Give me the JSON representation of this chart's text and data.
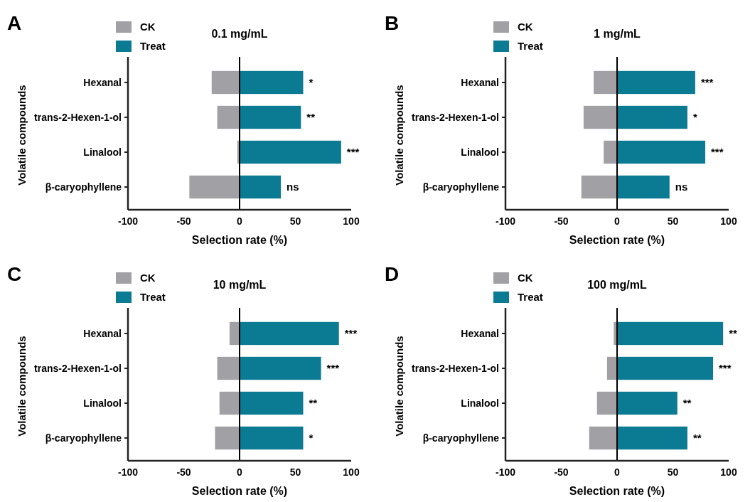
{
  "chart_data": [
    {
      "type": "bar",
      "orientation": "horizontal",
      "stacked": true,
      "title": "0.1 mg/mL",
      "xlabel": "Selection rate (%)",
      "ylabel": "Volatile compounds",
      "categories": [
        "Hexanal",
        "trans-2-Hexen-1-ol",
        "Linalool",
        "β-caryophyllene"
      ],
      "series": [
        {
          "name": "CK",
          "color": "#a0a0a5",
          "values": [
            -25,
            -20,
            -2,
            -45
          ]
        },
        {
          "name": "Treat",
          "color": "#0a7b93",
          "values": [
            57,
            55,
            91,
            37
          ]
        }
      ],
      "xlim": [
        -100,
        100
      ],
      "xticks": [
        -100,
        -50,
        0,
        50,
        100
      ],
      "legend": "top left",
      "annotations": [
        "A",
        {
          "text": "*",
          "x": 57,
          "y": "Hexanal"
        },
        {
          "text": "**",
          "x": 55,
          "y": "trans-2-Hexen-1-ol"
        },
        {
          "text": "***",
          "x": 91,
          "y": "Linalool"
        },
        {
          "text": "ns",
          "x": 37,
          "y": "β-caryophyllene"
        }
      ]
    },
    {
      "type": "bar",
      "orientation": "horizontal",
      "stacked": true,
      "title": "1 mg/mL",
      "xlabel": "Selection rate (%)",
      "ylabel": "Volatile compounds",
      "categories": [
        "Hexanal",
        "trans-2-Hexen-1-ol",
        "Linalool",
        "β-caryophyllene"
      ],
      "series": [
        {
          "name": "CK",
          "color": "#a0a0a5",
          "values": [
            -21,
            -30,
            -12,
            -32
          ]
        },
        {
          "name": "Treat",
          "color": "#0a7b93",
          "values": [
            70,
            63,
            79,
            47
          ]
        }
      ],
      "xlim": [
        -100,
        100
      ],
      "xticks": [
        -100,
        -50,
        0,
        50,
        100
      ],
      "legend": "top left",
      "annotations": [
        "B",
        {
          "text": "***",
          "x": 70,
          "y": "Hexanal"
        },
        {
          "text": "*",
          "x": 63,
          "y": "trans-2-Hexen-1-ol"
        },
        {
          "text": "***",
          "x": 79,
          "y": "Linalool"
        },
        {
          "text": "ns",
          "x": 47,
          "y": "β-caryophyllene"
        }
      ]
    },
    {
      "type": "bar",
      "orientation": "horizontal",
      "stacked": true,
      "title": "10 mg/mL",
      "xlabel": "Selection rate (%)",
      "ylabel": "Volatile compounds",
      "categories": [
        "Hexanal",
        "trans-2-Hexen-1-ol",
        "Linalool",
        "β-caryophyllene"
      ],
      "series": [
        {
          "name": "CK",
          "color": "#a0a0a5",
          "values": [
            -9,
            -20,
            -18,
            -22
          ]
        },
        {
          "name": "Treat",
          "color": "#0a7b93",
          "values": [
            89,
            73,
            57,
            57
          ]
        }
      ],
      "xlim": [
        -100,
        100
      ],
      "xticks": [
        -100,
        -50,
        0,
        50,
        100
      ],
      "legend": "top left",
      "annotations": [
        "C",
        {
          "text": "***",
          "x": 89,
          "y": "Hexanal"
        },
        {
          "text": "***",
          "x": 73,
          "y": "trans-2-Hexen-1-ol"
        },
        {
          "text": "**",
          "x": 57,
          "y": "Linalool"
        },
        {
          "text": "*",
          "x": 57,
          "y": "β-caryophyllene"
        }
      ]
    },
    {
      "type": "bar",
      "orientation": "horizontal",
      "stacked": true,
      "title": "100 mg/mL",
      "xlabel": "Selection rate (%)",
      "ylabel": "Volatile compounds",
      "categories": [
        "Hexanal",
        "trans-2-Hexen-1-ol",
        "Linalool",
        "β-caryophyllene"
      ],
      "series": [
        {
          "name": "CK",
          "color": "#a0a0a5",
          "values": [
            -3,
            -9,
            -18,
            -25
          ]
        },
        {
          "name": "Treat",
          "color": "#0a7b93",
          "values": [
            95,
            86,
            54,
            63
          ]
        }
      ],
      "xlim": [
        -100,
        100
      ],
      "xticks": [
        -100,
        -50,
        0,
        50,
        100
      ],
      "legend": "top left",
      "annotations": [
        "D",
        {
          "text": "**",
          "x": 95,
          "y": "Hexanal"
        },
        {
          "text": "***",
          "x": 86,
          "y": "trans-2-Hexen-1-ol"
        },
        {
          "text": "**",
          "x": 54,
          "y": "Linalool"
        },
        {
          "text": "**",
          "x": 63,
          "y": "β-caryophyllene"
        }
      ]
    }
  ]
}
